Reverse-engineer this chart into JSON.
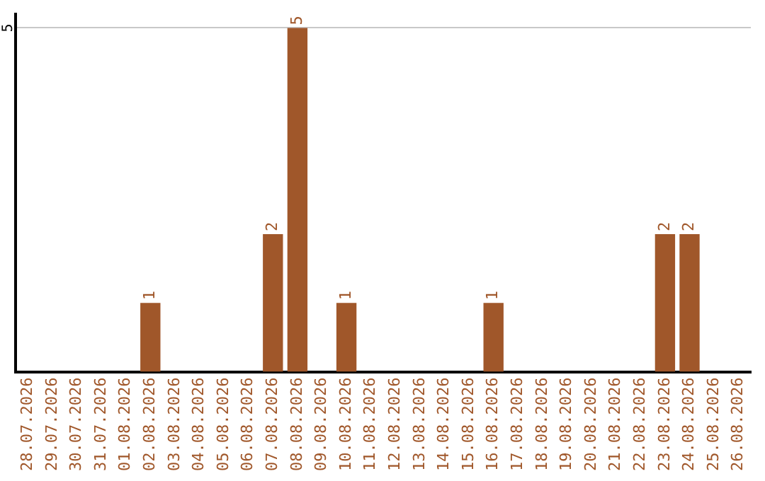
{
  "chart_data": {
    "type": "bar",
    "categories": [
      "28.07.2026",
      "29.07.2026",
      "30.07.2026",
      "31.07.2026",
      "01.08.2026",
      "02.08.2026",
      "03.08.2026",
      "04.08.2026",
      "05.08.2026",
      "06.08.2026",
      "07.08.2026",
      "08.08.2026",
      "09.08.2026",
      "10.08.2026",
      "11.08.2026",
      "12.08.2026",
      "13.08.2026",
      "14.08.2026",
      "15.08.2026",
      "16.08.2026",
      "17.08.2026",
      "18.08.2026",
      "19.08.2026",
      "20.08.2026",
      "21.08.2026",
      "22.08.2026",
      "23.08.2026",
      "24.08.2026",
      "25.08.2026",
      "26.08.2026"
    ],
    "values": [
      0,
      0,
      0,
      0,
      0,
      1,
      0,
      0,
      0,
      0,
      2,
      5,
      0,
      1,
      0,
      0,
      0,
      0,
      0,
      1,
      0,
      0,
      0,
      0,
      0,
      0,
      2,
      2,
      0,
      0
    ],
    "value_labels": [
      null,
      null,
      null,
      null,
      null,
      "1",
      null,
      null,
      null,
      null,
      "2",
      "5",
      null,
      "1",
      null,
      null,
      null,
      null,
      null,
      "1",
      null,
      null,
      null,
      null,
      null,
      null,
      "2",
      "2",
      null,
      null
    ],
    "color": "#a0572a",
    "ylim": [
      0,
      5.2
    ],
    "yticks": [
      5
    ],
    "grid": "y",
    "legend": false
  }
}
